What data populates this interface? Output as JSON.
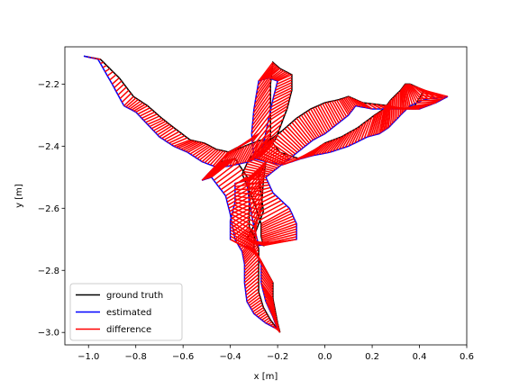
{
  "chart_data": {
    "type": "line",
    "title": "",
    "xlabel": "x [m]",
    "ylabel": "y [m]",
    "xlim": [
      -1.1,
      0.6
    ],
    "ylim": [
      -3.04,
      -2.08
    ],
    "x_ticks": [
      -1.0,
      -0.8,
      -0.6,
      -0.4,
      -0.2,
      0.0,
      0.2,
      0.4,
      0.6
    ],
    "x_tick_labels": [
      "−1.0",
      "−0.8",
      "−0.6",
      "−0.4",
      "−0.2",
      "0.0",
      "0.2",
      "0.4",
      "0.6"
    ],
    "y_ticks": [
      -2.2,
      -2.4,
      -2.6,
      -2.8,
      -3.0
    ],
    "y_tick_labels": [
      "−2.2",
      "−2.4",
      "−2.6",
      "−2.8",
      "−3.0"
    ],
    "grid": false,
    "legend_position": "lower-left",
    "series": [
      {
        "name": "ground truth",
        "color": "#000000"
      },
      {
        "name": "estimated",
        "color": "#0000ff"
      },
      {
        "name": "difference",
        "color": "#ff0000"
      }
    ],
    "estimated_path": [
      [
        -1.02,
        -2.11
      ],
      [
        -0.96,
        -2.12
      ],
      [
        -0.9,
        -2.2
      ],
      [
        -0.85,
        -2.27
      ],
      [
        -0.8,
        -2.29
      ],
      [
        -0.75,
        -2.33
      ],
      [
        -0.7,
        -2.37
      ],
      [
        -0.64,
        -2.4
      ],
      [
        -0.58,
        -2.42
      ],
      [
        -0.52,
        -2.45
      ],
      [
        -0.45,
        -2.47
      ],
      [
        -0.38,
        -2.46
      ],
      [
        -0.32,
        -2.45
      ],
      [
        -0.27,
        -2.43
      ],
      [
        -0.24,
        -2.32
      ],
      [
        -0.22,
        -2.25
      ],
      [
        -0.2,
        -2.19
      ],
      [
        -0.24,
        -2.18
      ],
      [
        -0.28,
        -2.19
      ],
      [
        -0.3,
        -2.28
      ],
      [
        -0.31,
        -2.36
      ],
      [
        -0.3,
        -2.44
      ],
      [
        -0.25,
        -2.45
      ],
      [
        -0.18,
        -2.46
      ],
      [
        -0.1,
        -2.44
      ],
      [
        -0.05,
        -2.43
      ],
      [
        0.02,
        -2.42
      ],
      [
        0.1,
        -2.4
      ],
      [
        0.18,
        -2.37
      ],
      [
        0.23,
        -2.36
      ],
      [
        0.27,
        -2.34
      ],
      [
        0.32,
        -2.3
      ],
      [
        0.36,
        -2.27
      ],
      [
        0.42,
        -2.25
      ],
      [
        0.52,
        -2.24
      ],
      [
        0.47,
        -2.26
      ],
      [
        0.4,
        -2.28
      ],
      [
        0.32,
        -2.28
      ],
      [
        0.2,
        -2.28
      ],
      [
        0.13,
        -2.27
      ],
      [
        0.1,
        -2.3
      ],
      [
        0.05,
        -2.33
      ],
      [
        0.0,
        -2.36
      ],
      [
        -0.05,
        -2.38
      ],
      [
        -0.1,
        -2.41
      ],
      [
        -0.15,
        -2.44
      ],
      [
        -0.2,
        -2.47
      ],
      [
        -0.25,
        -2.5
      ],
      [
        -0.22,
        -2.55
      ],
      [
        -0.15,
        -2.6
      ],
      [
        -0.12,
        -2.65
      ],
      [
        -0.12,
        -2.7
      ],
      [
        -0.2,
        -2.71
      ],
      [
        -0.28,
        -2.72
      ],
      [
        -0.3,
        -2.66
      ],
      [
        -0.32,
        -2.58
      ],
      [
        -0.33,
        -2.51
      ],
      [
        -0.38,
        -2.52
      ],
      [
        -0.38,
        -2.58
      ],
      [
        -0.4,
        -2.64
      ],
      [
        -0.4,
        -2.7
      ],
      [
        -0.35,
        -2.72
      ],
      [
        -0.3,
        -2.73
      ],
      [
        -0.27,
        -2.78
      ],
      [
        -0.27,
        -2.84
      ],
      [
        -0.25,
        -2.9
      ],
      [
        -0.22,
        -2.95
      ],
      [
        -0.2,
        -2.99
      ],
      [
        -0.25,
        -2.97
      ],
      [
        -0.3,
        -2.94
      ],
      [
        -0.33,
        -2.9
      ],
      [
        -0.34,
        -2.84
      ],
      [
        -0.34,
        -2.78
      ],
      [
        -0.35,
        -2.74
      ],
      [
        -0.38,
        -2.7
      ],
      [
        -0.4,
        -2.62
      ],
      [
        -0.42,
        -2.56
      ],
      [
        -0.48,
        -2.5
      ],
      [
        -0.52,
        -2.51
      ],
      [
        -0.47,
        -2.47
      ],
      [
        -0.42,
        -2.43
      ],
      [
        -0.36,
        -2.4
      ],
      [
        -0.32,
        -2.38
      ]
    ],
    "difference_offsets": [
      [
        0.0,
        0.0
      ],
      [
        0.01,
        0.0
      ],
      [
        0.03,
        0.02
      ],
      [
        0.04,
        0.03
      ],
      [
        0.05,
        0.02
      ],
      [
        0.06,
        0.02
      ],
      [
        0.06,
        0.03
      ],
      [
        0.07,
        0.02
      ],
      [
        0.07,
        0.03
      ],
      [
        0.06,
        0.04
      ],
      [
        0.05,
        0.05
      ],
      [
        0.04,
        0.06
      ],
      [
        0.05,
        0.07
      ],
      [
        0.06,
        0.05
      ],
      [
        0.08,
        0.04
      ],
      [
        0.08,
        0.03
      ],
      [
        0.06,
        0.02
      ],
      [
        0.05,
        0.03
      ],
      [
        0.06,
        0.06
      ],
      [
        0.07,
        0.08
      ],
      [
        0.08,
        0.08
      ],
      [
        0.07,
        0.06
      ],
      [
        0.06,
        0.03
      ],
      [
        0.07,
        0.02
      ],
      [
        0.06,
        0.03
      ],
      [
        0.05,
        0.04
      ],
      [
        0.05,
        0.05
      ],
      [
        0.04,
        0.06
      ],
      [
        0.03,
        0.07
      ],
      [
        0.02,
        0.08
      ],
      [
        0.01,
        0.09
      ],
      [
        0.0,
        0.08
      ],
      [
        -0.02,
        0.07
      ],
      [
        -0.06,
        0.05
      ],
      [
        -0.1,
        0.02
      ],
      [
        -0.09,
        -0.01
      ],
      [
        -0.07,
        0.0
      ],
      [
        -0.05,
        0.01
      ],
      [
        -0.04,
        0.02
      ],
      [
        -0.03,
        0.03
      ],
      [
        -0.04,
        0.05
      ],
      [
        -0.05,
        0.07
      ],
      [
        -0.06,
        0.08
      ],
      [
        -0.07,
        0.07
      ],
      [
        -0.08,
        0.06
      ],
      [
        -0.1,
        0.05
      ],
      [
        -0.12,
        0.03
      ],
      [
        -0.1,
        0.01
      ],
      [
        -0.08,
        -0.03
      ],
      [
        -0.12,
        -0.05
      ],
      [
        -0.15,
        -0.04
      ],
      [
        -0.14,
        -0.02
      ],
      [
        -0.1,
        0.0
      ],
      [
        -0.05,
        0.02
      ],
      [
        0.03,
        0.05
      ],
      [
        0.06,
        0.07
      ],
      [
        0.08,
        0.06
      ],
      [
        0.1,
        0.02
      ],
      [
        0.12,
        -0.03
      ],
      [
        0.1,
        -0.05
      ],
      [
        0.1,
        -0.04
      ],
      [
        0.05,
        -0.02
      ],
      [
        0.03,
        -0.04
      ],
      [
        0.05,
        -0.06
      ],
      [
        0.05,
        -0.05
      ],
      [
        0.04,
        -0.03
      ],
      [
        0.02,
        -0.02
      ],
      [
        0.01,
        -0.01
      ],
      [
        0.02,
        0.01
      ],
      [
        0.04,
        0.02
      ],
      [
        0.05,
        0.03
      ],
      [
        0.06,
        0.04
      ],
      [
        0.06,
        0.05
      ],
      [
        0.05,
        0.05
      ],
      [
        0.06,
        0.04
      ],
      [
        0.08,
        0.03
      ],
      [
        0.1,
        0.05
      ],
      [
        0.1,
        0.06
      ],
      [
        0.08,
        0.06
      ],
      [
        0.06,
        0.05
      ],
      [
        0.06,
        0.03
      ],
      [
        0.05,
        0.02
      ],
      [
        0.04,
        0.02
      ]
    ]
  }
}
